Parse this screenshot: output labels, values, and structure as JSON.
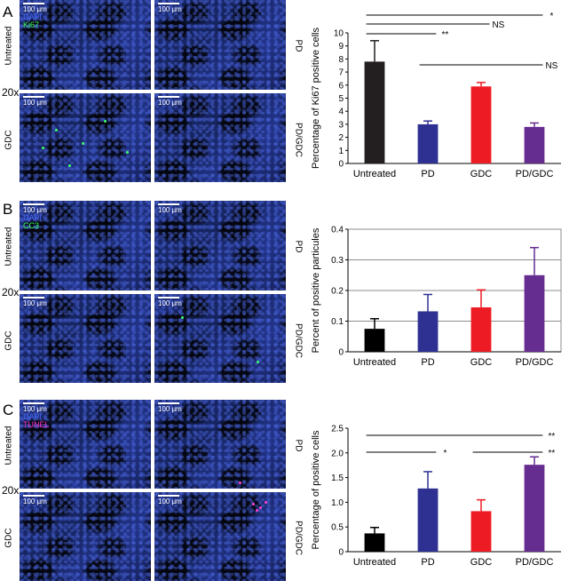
{
  "panels": [
    {
      "letter": "A",
      "magnification": "20x",
      "stains": [
        {
          "label": "DAPI",
          "color": "#4a6cff"
        },
        {
          "label": "Ki67",
          "color": "#3cff5a"
        }
      ],
      "scale_label": "100 µm",
      "conditions": [
        "Untreated",
        "PD",
        "GDC",
        "PD/GDC"
      ]
    },
    {
      "letter": "B",
      "magnification": "20x",
      "stains": [
        {
          "label": "DAPI",
          "color": "#4a6cff"
        },
        {
          "label": "CC3",
          "color": "#3cff5a"
        }
      ],
      "scale_label": "100 µm",
      "conditions": [
        "Untreated",
        "PD",
        "GDC",
        "PD/GDC"
      ]
    },
    {
      "letter": "C",
      "magnification": "20x",
      "stains": [
        {
          "label": "DAPI",
          "color": "#4a6cff"
        },
        {
          "label": "TUNEL",
          "color": "#ff2fc8"
        }
      ],
      "scale_label": "100 µm",
      "conditions": [
        "Untreated",
        "PD",
        "GDC",
        "PD/GDC"
      ]
    }
  ],
  "chart_data": [
    {
      "type": "bar",
      "categories": [
        "Untreated",
        "PD",
        "GDC",
        "PD/GDC"
      ],
      "values": [
        7.8,
        3.0,
        5.9,
        2.8
      ],
      "errors": [
        1.6,
        0.25,
        0.3,
        0.3
      ],
      "colors": [
        "#231f20",
        "#2e3192",
        "#ed1c24",
        "#662d91"
      ],
      "ylabel": "Percentage of Ki67 positive cells",
      "ylim": [
        0,
        10
      ],
      "yticks": [
        0,
        1,
        2,
        3,
        4,
        5,
        6,
        7,
        8,
        9,
        10
      ],
      "ytick_labels": [
        "0",
        "1",
        "2",
        "3",
        "4",
        "5",
        "6",
        "7",
        "8",
        "9",
        "10"
      ],
      "grid": false,
      "significance": [
        {
          "from": 0,
          "to": 3,
          "label": "*"
        },
        {
          "from": 0,
          "to": 2,
          "label": "NS"
        },
        {
          "from": 0,
          "to": 1,
          "label": "**"
        },
        {
          "from": 1,
          "to": 3,
          "label": "NS"
        }
      ]
    },
    {
      "type": "bar",
      "categories": [
        "Untreated",
        "PD",
        "GDC",
        "PD/GDC"
      ],
      "values": [
        0.075,
        0.132,
        0.145,
        0.25
      ],
      "errors": [
        0.033,
        0.055,
        0.057,
        0.09
      ],
      "colors": [
        "#000000",
        "#2e3192",
        "#ed1c24",
        "#662d91"
      ],
      "ylabel": "Percent of positive particules",
      "ylim": [
        0,
        0.4
      ],
      "yticks": [
        0,
        0.1,
        0.2,
        0.3,
        0.4
      ],
      "ytick_labels": [
        "0",
        "0.1",
        "0.2",
        "0.3",
        "0.4"
      ],
      "grid": true,
      "significance": []
    },
    {
      "type": "bar",
      "categories": [
        "Untreated",
        "PD",
        "GDC",
        "PD/GDC"
      ],
      "values": [
        0.37,
        1.28,
        0.82,
        1.76
      ],
      "errors": [
        0.12,
        0.34,
        0.23,
        0.16
      ],
      "colors": [
        "#000000",
        "#2e3192",
        "#ed1c24",
        "#662d91"
      ],
      "ylabel": "Percentage of positive cells",
      "ylim": [
        0,
        2.5
      ],
      "yticks": [
        0,
        0.5,
        1,
        1.5,
        2,
        2.5
      ],
      "ytick_labels": [
        "0",
        "0.5",
        "1.0",
        "1.5",
        "2.0",
        "2.5"
      ],
      "grid": false,
      "significance": [
        {
          "from": 0,
          "to": 3,
          "label": "**"
        },
        {
          "from": 0,
          "to": 1,
          "label": "*"
        },
        {
          "from": 2,
          "to": 3,
          "label": "**"
        }
      ]
    }
  ]
}
